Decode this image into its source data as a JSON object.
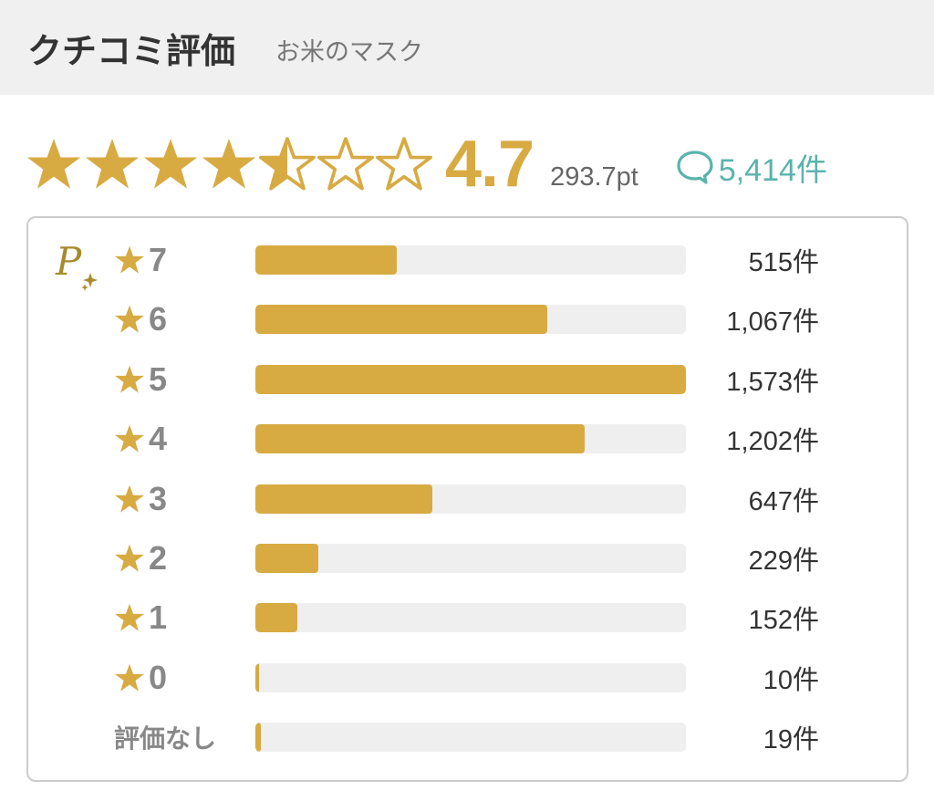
{
  "header": {
    "title": "クチコミ評価",
    "subtitle": "お米のマスク"
  },
  "summary": {
    "rating": "4.7",
    "rating_value": 4.7,
    "max_stars": 7,
    "points": "293.7pt",
    "review_count": "5,414件",
    "star_color": "#d8aa42",
    "review_color": "#5ab3ad",
    "review_icon": "speech-bubble-icon"
  },
  "distribution": {
    "logo_icon": "p-sparkle-logo",
    "rows": [
      {
        "label": "7",
        "count": "515件",
        "value": 515,
        "star": true
      },
      {
        "label": "6",
        "count": "1,067件",
        "value": 1067,
        "star": true
      },
      {
        "label": "5",
        "count": "1,573件",
        "value": 1573,
        "star": true
      },
      {
        "label": "4",
        "count": "1,202件",
        "value": 1202,
        "star": true
      },
      {
        "label": "3",
        "count": "647件",
        "value": 647,
        "star": true
      },
      {
        "label": "2",
        "count": "229件",
        "value": 229,
        "star": true
      },
      {
        "label": "1",
        "count": "152件",
        "value": 152,
        "star": true
      },
      {
        "label": "0",
        "count": "10件",
        "value": 10,
        "star": true
      },
      {
        "label": "評価なし",
        "count": "19件",
        "value": 19,
        "star": false
      }
    ]
  }
}
